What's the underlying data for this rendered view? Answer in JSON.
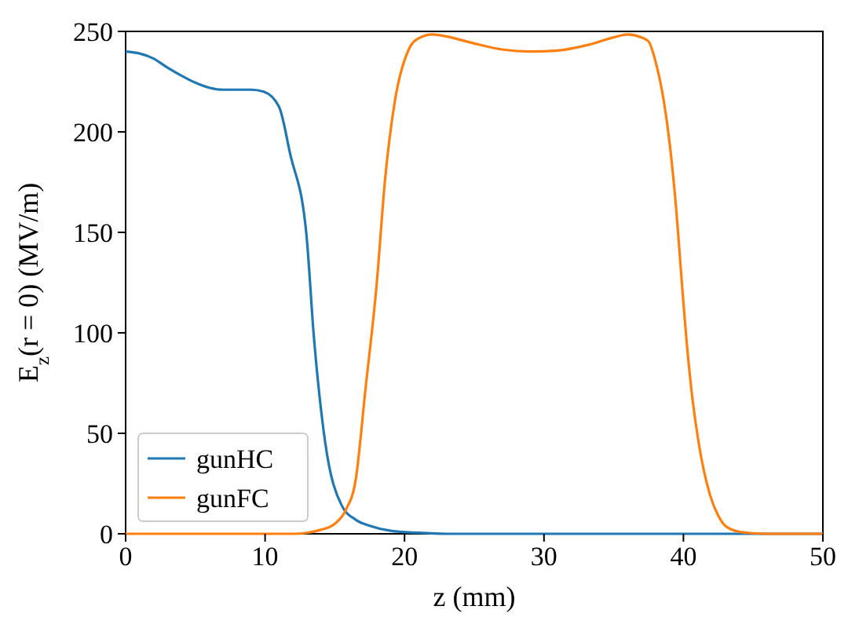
{
  "chart_data": {
    "type": "line",
    "xlabel": "z (mm)",
    "ylabel": "E$_{z}$(r = 0) (MV/m)",
    "xlim": [
      0,
      50
    ],
    "ylim": [
      0,
      250
    ],
    "xticks": [
      0,
      10,
      20,
      30,
      40,
      50
    ],
    "yticks": [
      0,
      50,
      100,
      150,
      200,
      250
    ],
    "legend": "bottom left",
    "marker": "none",
    "line_style": "solid",
    "series": [
      {
        "name": "gunHC",
        "color": "#1f77b4",
        "x": [
          0,
          1,
          2,
          3,
          4,
          5,
          6,
          7,
          8,
          9,
          9.9,
          11,
          11.8,
          12.95,
          13.5,
          14.3,
          15.5,
          16.5,
          17.5,
          19,
          21,
          23,
          50
        ],
        "values": [
          240,
          239,
          236.5,
          232,
          228,
          224.5,
          222,
          221,
          221,
          221,
          220,
          212.5,
          189,
          150,
          98,
          46,
          14,
          7,
          4,
          1.5,
          0.5,
          0,
          0
        ]
      },
      {
        "name": "gunFC",
        "color": "#ff7f0e",
        "x": [
          0,
          12,
          13,
          14,
          15,
          15.8,
          16.5,
          17.2,
          18,
          18.6,
          19.3,
          20.3,
          21,
          22,
          23,
          25,
          27,
          29,
          31,
          33,
          35,
          36,
          37,
          37.5,
          38,
          38.6,
          39,
          39.4,
          40,
          40.2,
          40.6,
          41.1,
          41.9,
          42.5,
          43,
          44,
          45,
          46,
          50
        ],
        "values": [
          0,
          0,
          0.5,
          2,
          5,
          12,
          27,
          72,
          124,
          176,
          215,
          241,
          246.5,
          248.5,
          247.5,
          244,
          241,
          240,
          240.5,
          243,
          247,
          248.5,
          247,
          245,
          235,
          215,
          195,
          168,
          115,
          98,
          70,
          45,
          19.5,
          9,
          4,
          1,
          0.3,
          0,
          0
        ]
      }
    ]
  }
}
